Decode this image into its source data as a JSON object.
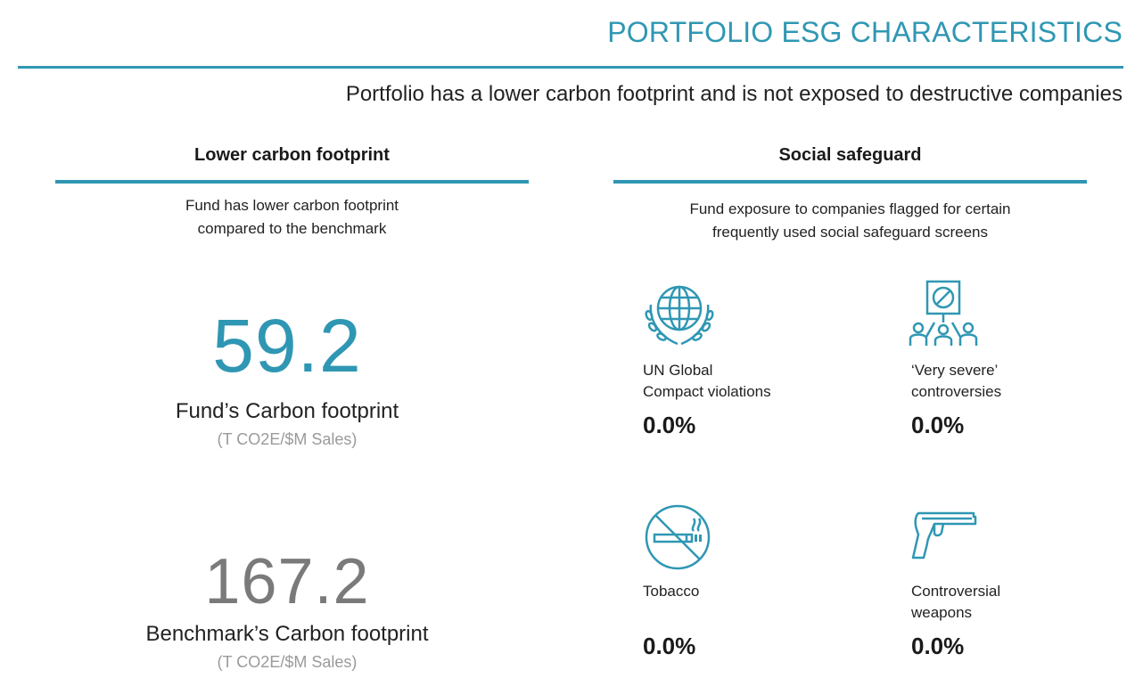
{
  "header": {
    "title": "PORTFOLIO ESG CHARACTERISTICS",
    "subtitle": "Portfolio has a lower carbon footprint and is not exposed to destructive companies"
  },
  "carbon": {
    "heading": "Lower carbon footprint",
    "desc_line1": "Fund has lower carbon footprint",
    "desc_line2": "compared to  the benchmark",
    "fund_value": "59.2",
    "fund_label": "Fund’s Carbon footprint",
    "fund_unit": "(T CO2E/$M Sales)",
    "bench_value": "167.2",
    "bench_label": "Benchmark’s Carbon footprint",
    "bench_unit": "(T CO2E/$M Sales)"
  },
  "social": {
    "heading": "Social safeguard",
    "desc_line1": "Fund exposure to companies flagged for certain",
    "desc_line2": "frequently used social safeguard screens",
    "items": [
      {
        "icon": "globe-laurel-icon",
        "label_line1": "UN Global",
        "label_line2": "Compact violations",
        "value": "0.0%"
      },
      {
        "icon": "protest-sign-icon",
        "label_line1": "‘Very severe’",
        "label_line2": "controversies",
        "value": "0.0%"
      },
      {
        "icon": "no-smoking-icon",
        "label_line1": "Tobacco",
        "label_line2": "",
        "value": "0.0%"
      },
      {
        "icon": "pistol-icon",
        "label_line1": "Controversial",
        "label_line2": "weapons",
        "value": "0.0%"
      }
    ]
  },
  "colors": {
    "accent": "#2f97b3",
    "bench_gray": "#7a7a7a",
    "unit_gray": "#9a9a9a"
  }
}
